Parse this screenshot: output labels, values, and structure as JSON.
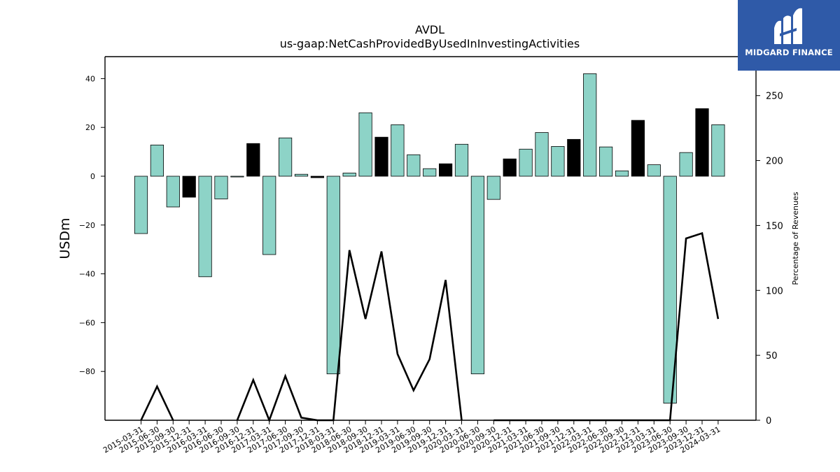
{
  "logo": {
    "text": "MIDGARD FINANCE",
    "icon": "midgard-logo-icon",
    "bg_color": "#2f5aa8"
  },
  "chart_data": {
    "type": "bar",
    "title": "AVDL",
    "subtitle": "us-gaap:NetCashProvidedByUsedInInvestingActivities",
    "ylabel": "USDm",
    "y2label": "Percentage of Revenues",
    "ylim": [
      -100,
      49
    ],
    "y2lim": [
      0,
      280
    ],
    "yticks": [
      40,
      20,
      0,
      -20,
      -40,
      -60,
      -80
    ],
    "y2ticks": [
      250,
      200,
      150,
      100,
      50,
      0
    ],
    "categories": [
      "2015-03-31",
      "2015-06-30",
      "2015-09-30",
      "2015-12-31",
      "2016-03-31",
      "2016-06-30",
      "2016-09-30",
      "2016-12-31",
      "2017-03-31",
      "2017-06-30",
      "2017-09-30",
      "2017-12-31",
      "2018-03-31",
      "2018-06-30",
      "2018-09-30",
      "2018-12-31",
      "2019-03-31",
      "2019-06-30",
      "2019-09-30",
      "2019-12-31",
      "2020-03-31",
      "2020-06-30",
      "2020-09-30",
      "2020-12-31",
      "2021-03-31",
      "2021-06-30",
      "2021-09-30",
      "2021-12-31",
      "2022-03-31",
      "2022-06-30",
      "2022-09-30",
      "2022-12-31",
      "2023-03-31",
      "2023-06-30",
      "2023-09-30",
      "2023-12-31",
      "2024-03-31"
    ],
    "values": [
      -23.5,
      12.8,
      -12.6,
      -8.6,
      -41.2,
      -9.3,
      -0.3,
      13.4,
      -32.1,
      15.7,
      0.8,
      -0.6,
      -81.0,
      1.3,
      26.0,
      16.0,
      21.1,
      8.8,
      3.1,
      5.1,
      13.1,
      -81.0,
      -9.5,
      7.1,
      11.1,
      17.9,
      12.2,
      15.1,
      42.0,
      12.0,
      2.2,
      22.9,
      4.7,
      -93.0,
      9.7,
      27.7,
      21.1
    ],
    "bar_colors": [
      "#8dd3c7",
      "#8dd3c7",
      "#8dd3c7",
      "#000000",
      "#8dd3c7",
      "#8dd3c7",
      "#8dd3c7",
      "#000000",
      "#8dd3c7",
      "#8dd3c7",
      "#8dd3c7",
      "#000000",
      "#8dd3c7",
      "#8dd3c7",
      "#8dd3c7",
      "#000000",
      "#8dd3c7",
      "#8dd3c7",
      "#8dd3c7",
      "#000000",
      "#8dd3c7",
      "#8dd3c7",
      "#8dd3c7",
      "#000000",
      "#8dd3c7",
      "#8dd3c7",
      "#8dd3c7",
      "#000000",
      "#8dd3c7",
      "#8dd3c7",
      "#8dd3c7",
      "#000000",
      "#8dd3c7",
      "#8dd3c7",
      "#8dd3c7",
      "#000000",
      "#8dd3c7"
    ],
    "pct_revenues": [
      0,
      26,
      0,
      null,
      null,
      null,
      0,
      31,
      0,
      34,
      2,
      0,
      0,
      131,
      78,
      130,
      51,
      23,
      47,
      108,
      0,
      null,
      0,
      0,
      0,
      0,
      0,
      0,
      0,
      0,
      0,
      0,
      0,
      0,
      140,
      144,
      78
    ],
    "colors": {
      "positive_bar": "#8dd3c7",
      "q4_bar": "#000000",
      "line": "#000000"
    },
    "grid": false
  }
}
